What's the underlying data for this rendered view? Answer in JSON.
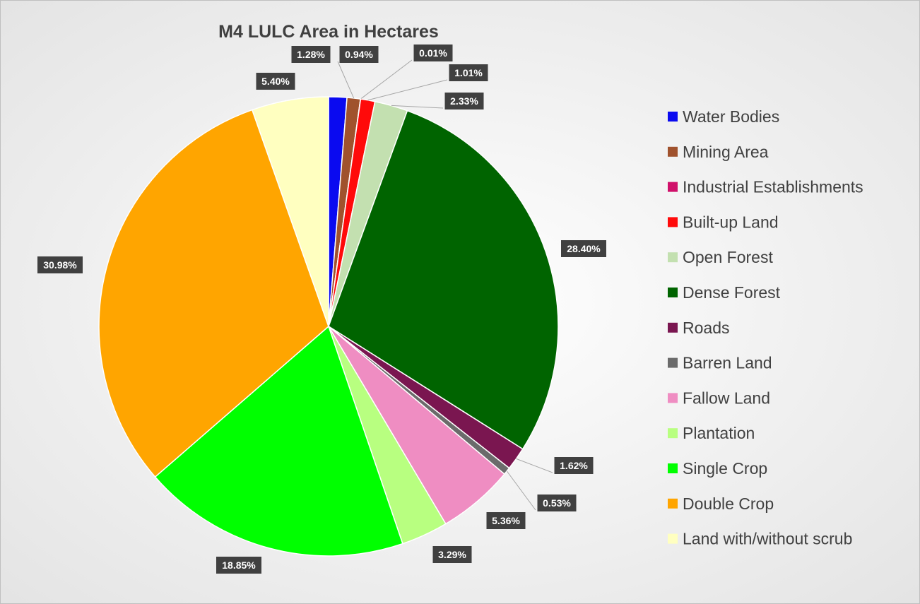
{
  "chart_data": {
    "type": "pie",
    "title": "M4 LULC Area in Hectares",
    "categories": [
      "Water Bodies",
      "Mining Area",
      "Industrial Establishments",
      "Built-up Land",
      "Open Forest",
      "Dense Forest",
      "Roads",
      "Barren Land",
      "Fallow Land",
      "Plantation",
      "Single Crop",
      "Double Crop",
      "Land with/without scrub"
    ],
    "values": [
      1.28,
      0.94,
      0.01,
      1.01,
      2.33,
      28.4,
      1.62,
      0.53,
      5.36,
      3.29,
      18.85,
      30.98,
      5.4
    ],
    "value_labels": [
      "1.28%",
      "0.94%",
      "0.01%",
      "1.01%",
      "2.33%",
      "28.40%",
      "1.62%",
      "0.53%",
      "5.36%",
      "3.29%",
      "18.85%",
      "30.98%",
      "5.40%"
    ],
    "colors": [
      "#0a0af0",
      "#a0522d",
      "#d0106a",
      "#ff0a0a",
      "#c3e0b0",
      "#006400",
      "#7a1650",
      "#6b6b6b",
      "#ef8dc2",
      "#b8ff80",
      "#00ff00",
      "#ffa500",
      "#ffffc0"
    ],
    "legend": "right"
  }
}
